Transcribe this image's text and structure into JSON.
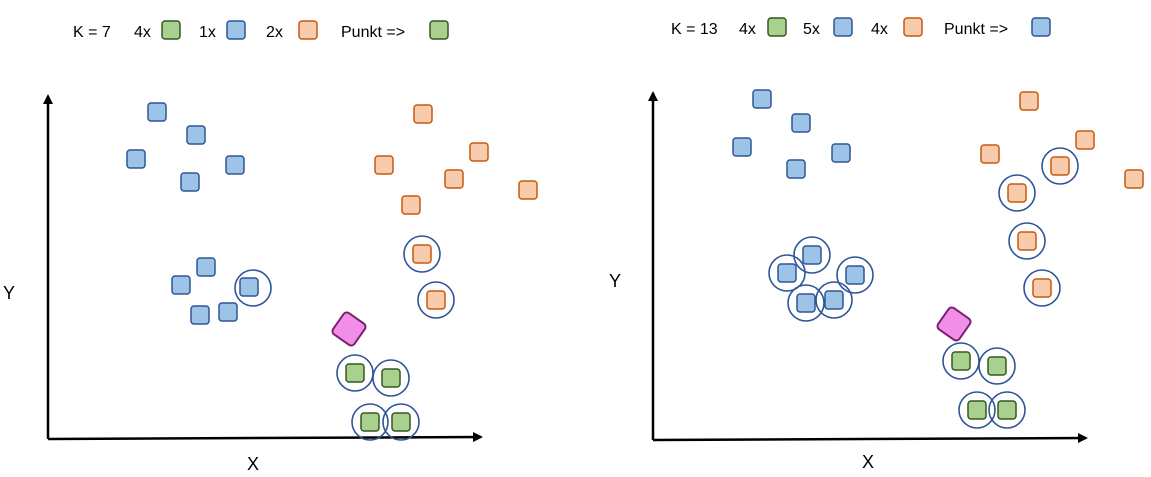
{
  "colors": {
    "green_fill": "#a9d18e",
    "green_stroke": "#375623",
    "blue_fill": "#9dc3e6",
    "blue_stroke": "#2f5597",
    "orange_fill": "#f8cbad",
    "orange_stroke": "#c55a11",
    "query_fill": "#f08ee8",
    "query_stroke": "#7b1f6f",
    "circle_stroke": "#2f5597",
    "axis": "#000000"
  },
  "panels": [
    {
      "legend": {
        "k_label": "K = 7",
        "green_count": "4x",
        "blue_count": "1x",
        "orange_count": "2x",
        "result_label": "Punkt =>",
        "result_class": "green"
      },
      "axes": {
        "x_label": "X",
        "y_label": "Y"
      }
    },
    {
      "legend": {
        "k_label": "K = 13",
        "green_count": "4x",
        "blue_count": "5x",
        "orange_count": "4x",
        "result_label": "Punkt =>",
        "result_class": "blue"
      },
      "axes": {
        "x_label": "X",
        "y_label": "Y"
      }
    }
  ]
}
